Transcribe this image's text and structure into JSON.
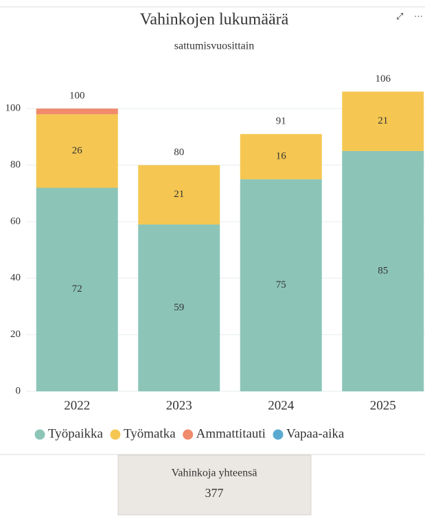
{
  "chart_data": {
    "type": "stacked-bar",
    "title": "Vahinkojen lukumäärä",
    "subtitle": "sattumisvuosittain",
    "categories": [
      "2022",
      "2023",
      "2024",
      "2025"
    ],
    "series": [
      {
        "name": "Työpaikka",
        "color": "#8cc5b8",
        "values": [
          72,
          59,
          75,
          85
        ]
      },
      {
        "name": "Työmatka",
        "color": "#f5c752",
        "values": [
          26,
          21,
          16,
          21
        ]
      },
      {
        "name": "Ammattitauti",
        "color": "#f08a6c",
        "values": [
          2,
          0,
          0,
          0
        ]
      },
      {
        "name": "Vapaa-aika",
        "color": "#5aaad0",
        "values": [
          0,
          0,
          0,
          0
        ]
      }
    ],
    "totals": [
      100,
      80,
      91,
      106
    ],
    "ylim": [
      0,
      110
    ],
    "yticks": [
      0,
      20,
      40,
      60,
      80,
      100
    ],
    "grid": true,
    "legend": "bottom"
  },
  "card": {
    "label": "Vahinkoja yhteensä",
    "value": 377
  }
}
